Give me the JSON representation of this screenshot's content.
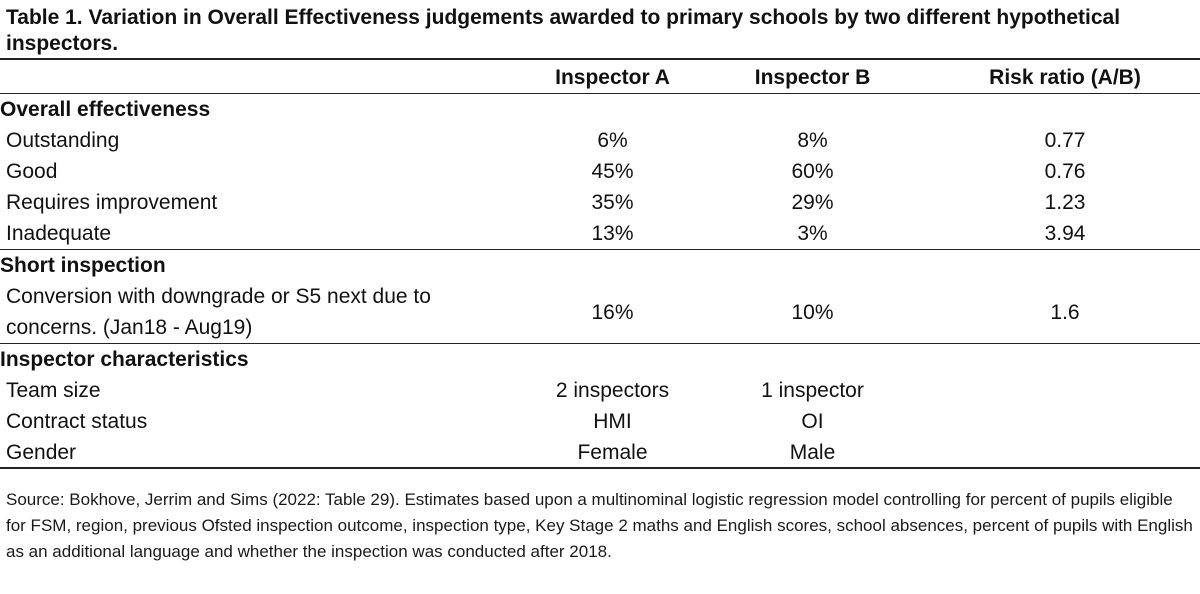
{
  "title": "Table 1. Variation in Overall Effectiveness judgements awarded to primary schools by two different hypothetical inspectors.",
  "headers": [
    "",
    "Inspector A",
    "Inspector B",
    "Risk ratio (A/B)"
  ],
  "sections": [
    {
      "heading": "Overall effectiveness",
      "rows": [
        {
          "label": "Outstanding",
          "a": "6%",
          "b": "8%",
          "ratio": "0.77"
        },
        {
          "label": "Good",
          "a": "45%",
          "b": "60%",
          "ratio": "0.76"
        },
        {
          "label": "Requires improvement",
          "a": "35%",
          "b": "29%",
          "ratio": "1.23"
        },
        {
          "label": "Inadequate",
          "a": "13%",
          "b": "3%",
          "ratio": "3.94"
        }
      ]
    },
    {
      "heading": "Short inspection",
      "rows": [
        {
          "label_lines": [
            "Conversion with downgrade or S5 next due to",
            "concerns. (Jan18 - Aug19)"
          ],
          "a": "16%",
          "b": "10%",
          "ratio": "1.6"
        }
      ]
    },
    {
      "heading": "Inspector characteristics",
      "rows": [
        {
          "label": "Team size",
          "a": "2 inspectors",
          "b": "1 inspector",
          "ratio": ""
        },
        {
          "label": "Contract status",
          "a": "HMI",
          "b": "OI",
          "ratio": ""
        },
        {
          "label": "Gender",
          "a": "Female",
          "b": "Male",
          "ratio": ""
        }
      ]
    }
  ],
  "source_note": "Source: Bokhove, Jerrim and Sims (2022: Table 29). Estimates based upon a multinominal logistic regression model controlling for percent of pupils eligible for FSM, region, previous Ofsted inspection outcome, inspection type, Key Stage 2 maths and English scores, school absences, percent of pupils with English as an additional language and whether the inspection was conducted after 2018."
}
